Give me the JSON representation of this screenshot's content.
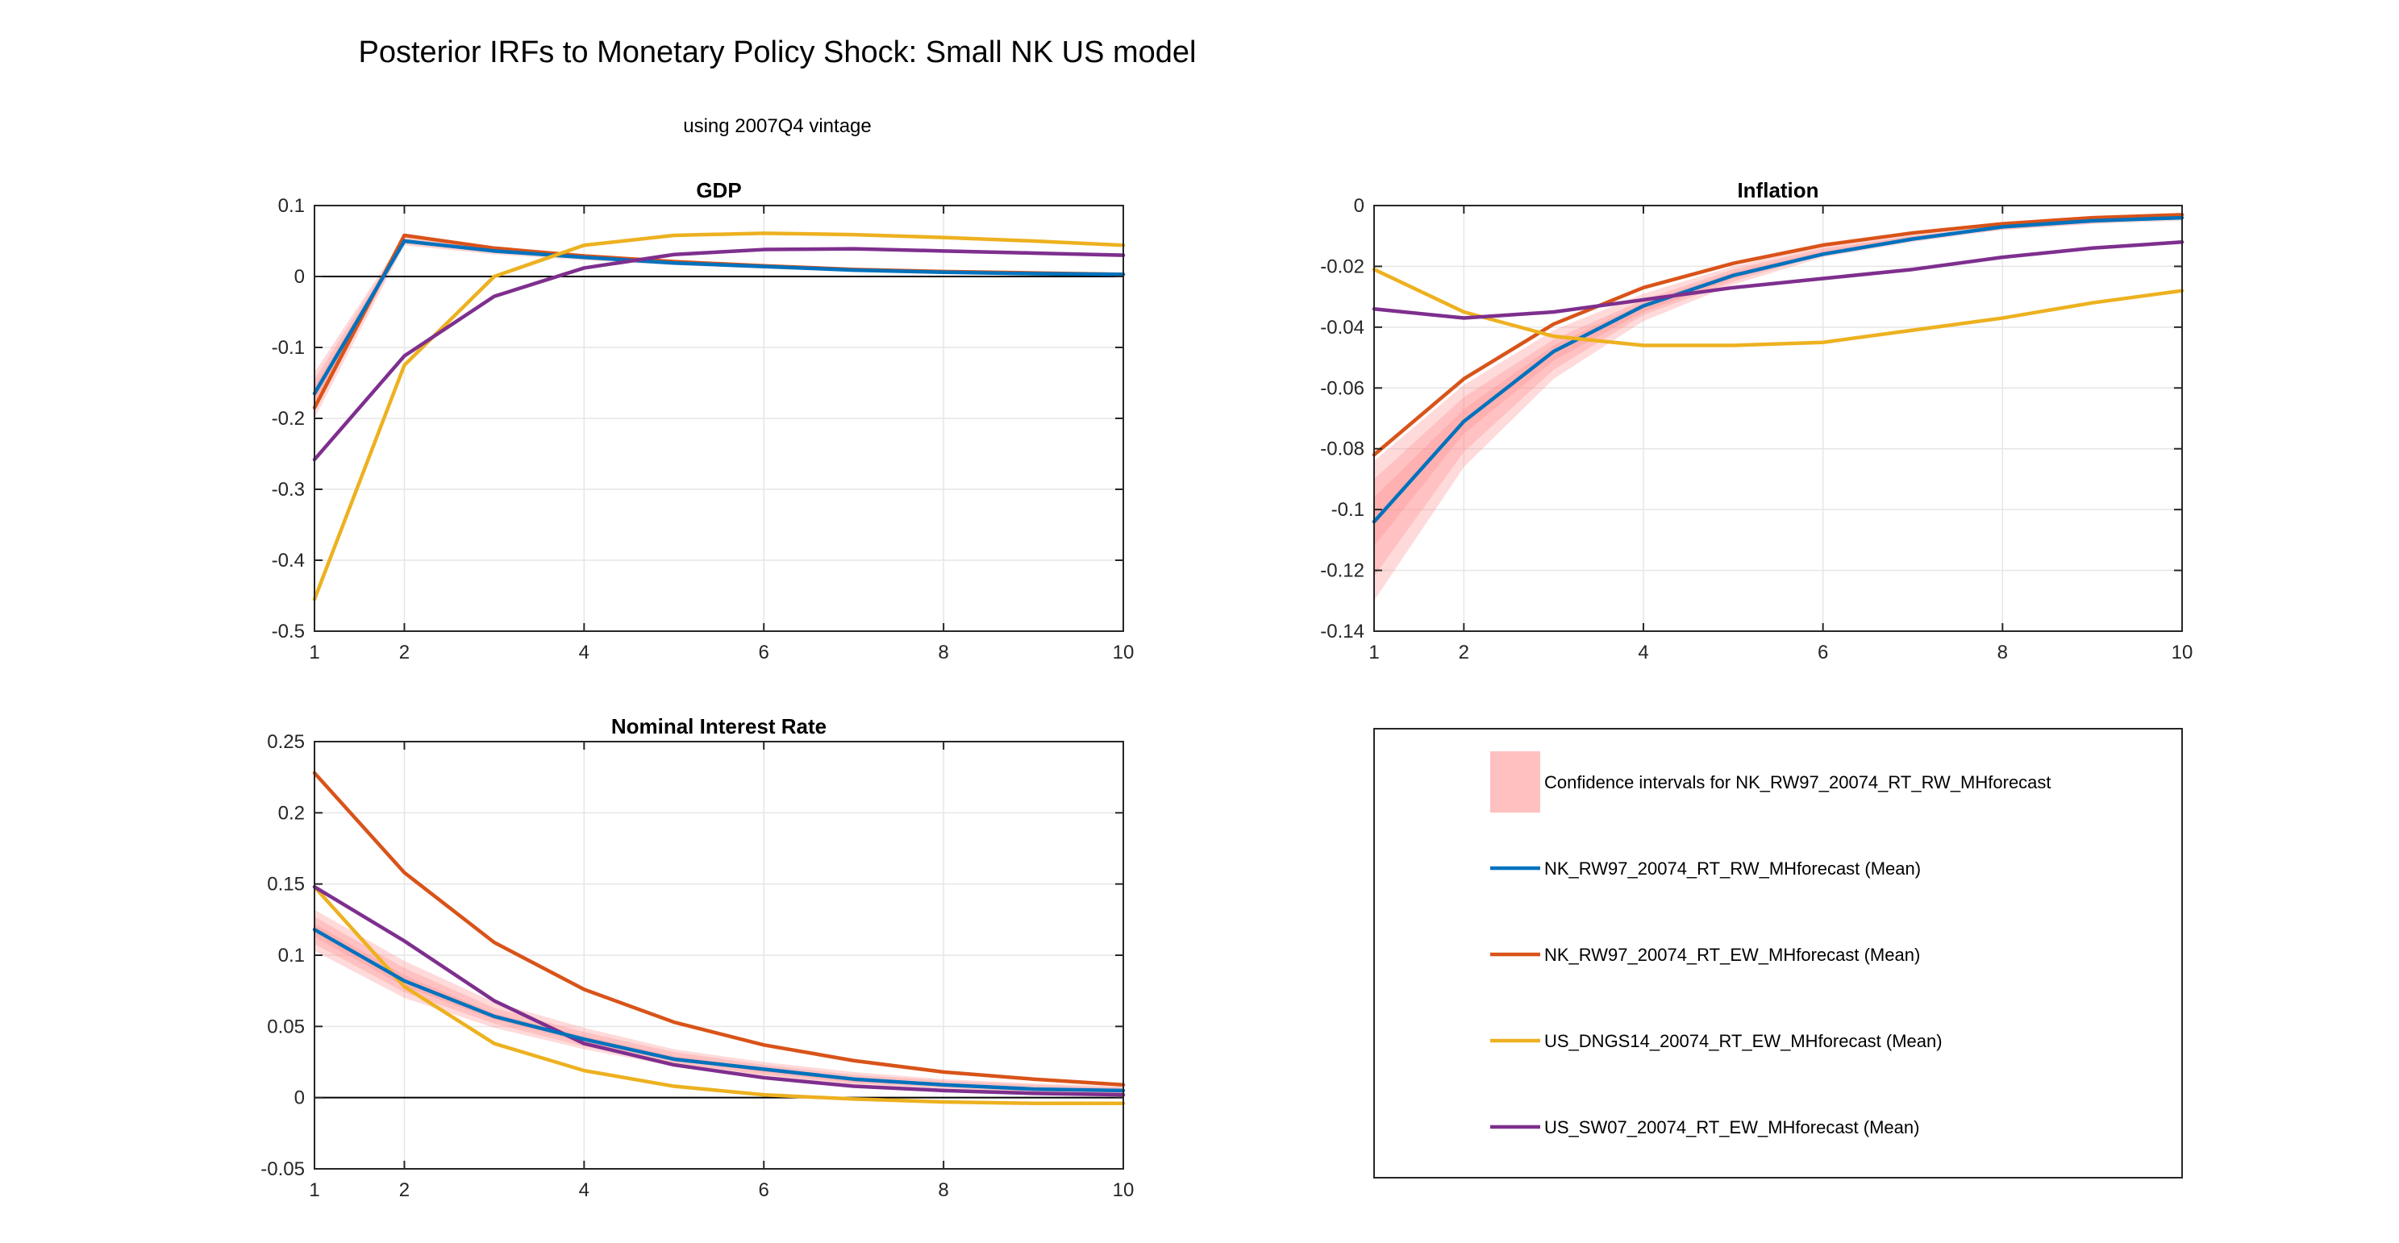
{
  "figure": {
    "title": "Posterior IRFs to Monetary Policy Shock: Small NK US model",
    "subtitle": "using 2007Q4 vintage"
  },
  "colors": {
    "band": "#ff8c8c",
    "blue": "#0072bd",
    "orange": "#d95319",
    "yellow": "#edb120",
    "purple": "#7e2f8e",
    "grid": "#e6e6e6",
    "axis": "#262626",
    "zero_line": "#000000"
  },
  "legend": {
    "entries": [
      {
        "label": "Confidence intervals for NK_RW97_20074_RT_RW_MHforecast",
        "type": "band",
        "color_key": "band"
      },
      {
        "label": "NK_RW97_20074_RT_RW_MHforecast (Mean)",
        "type": "line",
        "color_key": "blue"
      },
      {
        "label": "NK_RW97_20074_RT_EW_MHforecast (Mean)",
        "type": "line",
        "color_key": "orange"
      },
      {
        "label": "US_DNGS14_20074_RT_EW_MHforecast (Mean)",
        "type": "line",
        "color_key": "yellow"
      },
      {
        "label": "US_SW07_20074_RT_EW_MHforecast (Mean)",
        "type": "line",
        "color_key": "purple"
      }
    ]
  },
  "chart_data": [
    {
      "type": "line",
      "title": "GDP",
      "xlabel": "",
      "ylabel": "",
      "x": [
        1,
        2,
        3,
        4,
        5,
        6,
        7,
        8,
        9,
        10
      ],
      "xlim": [
        1,
        10
      ],
      "ylim": [
        -0.5,
        0.1
      ],
      "xticks": [
        1,
        2,
        4,
        6,
        8,
        10
      ],
      "xtick_labels": [
        "1",
        "2",
        "4",
        "6",
        "8",
        "10"
      ],
      "yticks": [
        -0.5,
        -0.4,
        -0.3,
        -0.2,
        -0.1,
        0,
        0.1
      ],
      "ytick_labels": [
        "-0.5",
        "-0.4",
        "-0.3",
        "-0.2",
        "-0.1",
        "0",
        "0.1"
      ],
      "grid": true,
      "bands": [
        {
          "lower": [
            -0.2,
            0.044,
            0.031,
            0.023,
            0.016,
            0.011,
            0.007,
            0.004,
            0.002,
            0.001
          ],
          "upper": [
            -0.135,
            0.056,
            0.041,
            0.031,
            0.022,
            0.016,
            0.011,
            0.008,
            0.006,
            0.004
          ]
        },
        {
          "lower": [
            -0.188,
            0.046,
            0.033,
            0.025,
            0.017,
            0.012,
            0.008,
            0.005,
            0.003,
            0.002
          ],
          "upper": [
            -0.145,
            0.054,
            0.039,
            0.029,
            0.021,
            0.015,
            0.01,
            0.007,
            0.005,
            0.003
          ]
        },
        {
          "lower": [
            -0.176,
            0.048,
            0.035,
            0.026,
            0.018,
            0.013,
            0.009,
            0.006,
            0.004,
            0.002
          ],
          "upper": [
            -0.155,
            0.052,
            0.037,
            0.028,
            0.02,
            0.014,
            0.01,
            0.007,
            0.005,
            0.003
          ]
        }
      ],
      "series": [
        {
          "name": "NK_RW97_20074_RT_EW_MHforecast (Mean)",
          "color_key": "orange",
          "values": [
            -0.185,
            0.058,
            0.04,
            0.029,
            0.021,
            0.015,
            0.01,
            0.007,
            0.005,
            0.003
          ]
        },
        {
          "name": "NK_RW97_20074_RT_RW_MHforecast (Mean)",
          "color_key": "blue",
          "values": [
            -0.165,
            0.05,
            0.036,
            0.027,
            0.019,
            0.014,
            0.009,
            0.006,
            0.004,
            0.003
          ]
        },
        {
          "name": "US_DNGS14_20074_RT_EW_MHforecast (Mean)",
          "color_key": "yellow",
          "values": [
            -0.455,
            -0.125,
            0.0,
            0.044,
            0.058,
            0.061,
            0.059,
            0.055,
            0.05,
            0.044
          ]
        },
        {
          "name": "US_SW07_20074_RT_EW_MHforecast (Mean)",
          "color_key": "purple",
          "values": [
            -0.258,
            -0.112,
            -0.028,
            0.012,
            0.031,
            0.038,
            0.039,
            0.036,
            0.033,
            0.03
          ]
        }
      ]
    },
    {
      "type": "line",
      "title": "Inflation",
      "xlabel": "",
      "ylabel": "",
      "x": [
        1,
        2,
        3,
        4,
        5,
        6,
        7,
        8,
        9,
        10
      ],
      "xlim": [
        1,
        10
      ],
      "ylim": [
        -0.14,
        0
      ],
      "xticks": [
        1,
        2,
        4,
        6,
        8,
        10
      ],
      "xtick_labels": [
        "1",
        "2",
        "4",
        "6",
        "8",
        "10"
      ],
      "yticks": [
        -0.14,
        -0.12,
        -0.1,
        -0.08,
        -0.06,
        -0.04,
        -0.02,
        0
      ],
      "ytick_labels": [
        "-0.14",
        "-0.12",
        "-0.1",
        "-0.08",
        "-0.06",
        "-0.04",
        "-0.02",
        "0"
      ],
      "grid": true,
      "bands": [
        {
          "lower": [
            -0.13,
            -0.086,
            -0.057,
            -0.038,
            -0.026,
            -0.017,
            -0.012,
            -0.008,
            -0.006,
            -0.005
          ],
          "upper": [
            -0.084,
            -0.059,
            -0.041,
            -0.029,
            -0.02,
            -0.013,
            -0.009,
            -0.006,
            -0.004,
            -0.003
          ]
        },
        {
          "lower": [
            -0.122,
            -0.081,
            -0.054,
            -0.036,
            -0.025,
            -0.016,
            -0.011,
            -0.008,
            -0.006,
            -0.004
          ],
          "upper": [
            -0.09,
            -0.063,
            -0.044,
            -0.031,
            -0.021,
            -0.014,
            -0.01,
            -0.007,
            -0.005,
            -0.003
          ]
        },
        {
          "lower": [
            -0.112,
            -0.075,
            -0.051,
            -0.035,
            -0.024,
            -0.016,
            -0.011,
            -0.007,
            -0.005,
            -0.004
          ],
          "upper": [
            -0.096,
            -0.067,
            -0.046,
            -0.032,
            -0.022,
            -0.015,
            -0.01,
            -0.007,
            -0.005,
            -0.003
          ]
        }
      ],
      "series": [
        {
          "name": "NK_RW97_20074_RT_EW_MHforecast (Mean)",
          "color_key": "orange",
          "values": [
            -0.082,
            -0.057,
            -0.039,
            -0.027,
            -0.019,
            -0.013,
            -0.009,
            -0.006,
            -0.004,
            -0.003
          ]
        },
        {
          "name": "NK_RW97_20074_RT_RW_MHforecast (Mean)",
          "color_key": "blue",
          "values": [
            -0.104,
            -0.071,
            -0.048,
            -0.033,
            -0.023,
            -0.016,
            -0.011,
            -0.007,
            -0.005,
            -0.004
          ]
        },
        {
          "name": "US_DNGS14_20074_RT_EW_MHforecast (Mean)",
          "color_key": "yellow",
          "values": [
            -0.021,
            -0.035,
            -0.043,
            -0.046,
            -0.046,
            -0.045,
            -0.041,
            -0.037,
            -0.032,
            -0.028
          ]
        },
        {
          "name": "US_SW07_20074_RT_EW_MHforecast (Mean)",
          "color_key": "purple",
          "values": [
            -0.034,
            -0.037,
            -0.035,
            -0.031,
            -0.027,
            -0.024,
            -0.021,
            -0.017,
            -0.014,
            -0.012
          ]
        }
      ]
    },
    {
      "type": "line",
      "title": "Nominal Interest Rate",
      "xlabel": "",
      "ylabel": "",
      "x": [
        1,
        2,
        3,
        4,
        5,
        6,
        7,
        8,
        9,
        10
      ],
      "xlim": [
        1,
        10
      ],
      "ylim": [
        -0.05,
        0.25
      ],
      "xticks": [
        1,
        2,
        4,
        6,
        8,
        10
      ],
      "xtick_labels": [
        "1",
        "2",
        "4",
        "6",
        "8",
        "10"
      ],
      "yticks": [
        -0.05,
        0,
        0.05,
        0.1,
        0.15,
        0.2,
        0.25
      ],
      "ytick_labels": [
        "-0.05",
        "0",
        "0.05",
        "0.1",
        "0.15",
        "0.2",
        "0.25"
      ],
      "grid": true,
      "bands": [
        {
          "lower": [
            0.103,
            0.07,
            0.049,
            0.034,
            0.022,
            0.015,
            0.009,
            0.006,
            0.003,
            0.002
          ],
          "upper": [
            0.132,
            0.096,
            0.067,
            0.049,
            0.034,
            0.025,
            0.018,
            0.013,
            0.01,
            0.008
          ]
        },
        {
          "lower": [
            0.108,
            0.074,
            0.052,
            0.036,
            0.024,
            0.016,
            0.01,
            0.007,
            0.004,
            0.003
          ],
          "upper": [
            0.127,
            0.091,
            0.063,
            0.046,
            0.032,
            0.023,
            0.016,
            0.012,
            0.009,
            0.007
          ]
        },
        {
          "lower": [
            0.113,
            0.078,
            0.055,
            0.039,
            0.026,
            0.018,
            0.011,
            0.008,
            0.005,
            0.003
          ],
          "upper": [
            0.122,
            0.086,
            0.059,
            0.043,
            0.029,
            0.021,
            0.014,
            0.01,
            0.007,
            0.006
          ]
        }
      ],
      "series": [
        {
          "name": "NK_RW97_20074_RT_EW_MHforecast (Mean)",
          "color_key": "orange",
          "values": [
            0.228,
            0.158,
            0.109,
            0.076,
            0.053,
            0.037,
            0.026,
            0.018,
            0.013,
            0.009
          ]
        },
        {
          "name": "US_DNGS14_20074_RT_EW_MHforecast (Mean)",
          "color_key": "yellow",
          "values": [
            0.148,
            0.078,
            0.038,
            0.019,
            0.008,
            0.002,
            -0.001,
            -0.003,
            -0.004,
            -0.004
          ]
        },
        {
          "name": "US_SW07_20074_RT_EW_MHforecast (Mean)",
          "color_key": "purple",
          "values": [
            0.148,
            0.11,
            0.068,
            0.038,
            0.023,
            0.014,
            0.008,
            0.005,
            0.003,
            0.002
          ]
        },
        {
          "name": "NK_RW97_20074_RT_RW_MHforecast (Mean)",
          "color_key": "blue",
          "values": [
            0.118,
            0.082,
            0.057,
            0.041,
            0.027,
            0.02,
            0.013,
            0.009,
            0.006,
            0.005
          ]
        }
      ]
    }
  ]
}
